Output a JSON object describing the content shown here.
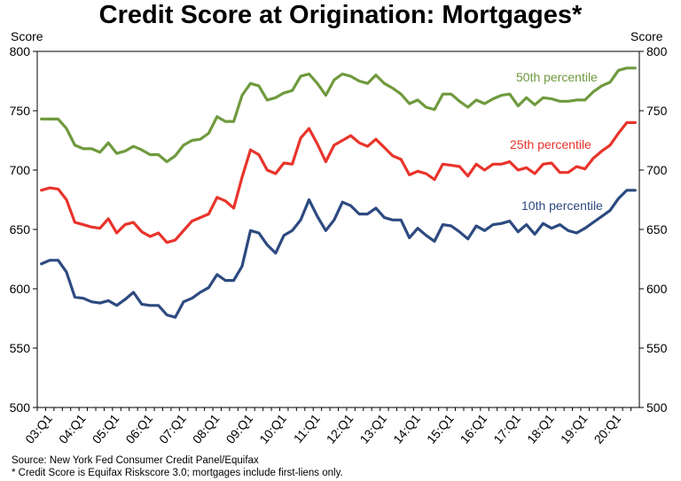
{
  "chart_data": {
    "type": "line",
    "title": "Credit Score at Origination: Mortgages*",
    "ylabel_left": "Score",
    "ylabel_right": "Score",
    "ylim": [
      500,
      800
    ],
    "yticks": [
      500,
      550,
      600,
      650,
      700,
      750,
      800
    ],
    "xticks": [
      "03:Q1",
      "04:Q1",
      "05:Q1",
      "06:Q1",
      "07:Q1",
      "08:Q1",
      "09:Q1",
      "10:Q1",
      "11:Q1",
      "12:Q1",
      "13:Q1",
      "14:Q1",
      "15:Q1",
      "16:Q1",
      "17:Q1",
      "18:Q1",
      "19:Q1",
      "20:Q1"
    ],
    "x": [
      "03:Q1",
      "03:Q2",
      "03:Q3",
      "03:Q4",
      "04:Q1",
      "04:Q2",
      "04:Q3",
      "04:Q4",
      "05:Q1",
      "05:Q2",
      "05:Q3",
      "05:Q4",
      "06:Q1",
      "06:Q2",
      "06:Q3",
      "06:Q4",
      "07:Q1",
      "07:Q2",
      "07:Q3",
      "07:Q4",
      "08:Q1",
      "08:Q2",
      "08:Q3",
      "08:Q4",
      "09:Q1",
      "09:Q2",
      "09:Q3",
      "09:Q4",
      "10:Q1",
      "10:Q2",
      "10:Q3",
      "10:Q4",
      "11:Q1",
      "11:Q2",
      "11:Q3",
      "11:Q4",
      "12:Q1",
      "12:Q2",
      "12:Q3",
      "12:Q4",
      "13:Q1",
      "13:Q2",
      "13:Q3",
      "13:Q4",
      "14:Q1",
      "14:Q2",
      "14:Q3",
      "14:Q4",
      "15:Q1",
      "15:Q2",
      "15:Q3",
      "15:Q4",
      "16:Q1",
      "16:Q2",
      "16:Q3",
      "16:Q4",
      "17:Q1",
      "17:Q2",
      "17:Q3",
      "17:Q4",
      "18:Q1",
      "18:Q2",
      "18:Q3",
      "18:Q4",
      "19:Q1",
      "19:Q2",
      "19:Q3",
      "19:Q4",
      "20:Q1",
      "20:Q2",
      "20:Q3",
      "20:Q4"
    ],
    "series": [
      {
        "name": "50th percentile",
        "color": "#6f9a3e",
        "label_pos": "upper-right",
        "values": [
          743,
          743,
          743,
          735,
          721,
          718,
          718,
          715,
          723,
          714,
          716,
          720,
          717,
          713,
          713,
          707,
          712,
          721,
          725,
          726,
          731,
          745,
          741,
          741,
          763,
          773,
          771,
          759,
          761,
          765,
          767,
          779,
          781,
          773,
          763,
          776,
          781,
          779,
          775,
          773,
          780,
          773,
          769,
          764,
          756,
          759,
          753,
          751,
          764,
          764,
          758,
          753,
          759,
          756,
          760,
          763,
          764,
          754,
          761,
          755,
          761,
          760,
          758,
          758,
          759,
          759,
          766,
          771,
          774,
          784,
          786,
          786
        ]
      },
      {
        "name": "25th percentile",
        "color": "#e8342b",
        "label_pos": "upper-right",
        "values": [
          683,
          685,
          684,
          675,
          656,
          654,
          652,
          651,
          659,
          647,
          654,
          656,
          648,
          644,
          647,
          639,
          641,
          649,
          657,
          660,
          663,
          677,
          674,
          668,
          694,
          717,
          713,
          700,
          697,
          706,
          705,
          727,
          735,
          722,
          707,
          721,
          725,
          729,
          723,
          720,
          726,
          719,
          712,
          709,
          696,
          699,
          697,
          692,
          705,
          704,
          703,
          695,
          705,
          700,
          705,
          705,
          707,
          700,
          702,
          697,
          705,
          706,
          698,
          698,
          703,
          701,
          710,
          716,
          721,
          731,
          740,
          740
        ]
      },
      {
        "name": "10th percentile",
        "color": "#2d4a80",
        "label_pos": "upper-right",
        "values": [
          621,
          624,
          624,
          614,
          593,
          592,
          589,
          588,
          590,
          586,
          591,
          597,
          587,
          586,
          586,
          578,
          576,
          589,
          592,
          597,
          601,
          612,
          607,
          607,
          619,
          649,
          647,
          637,
          630,
          645,
          649,
          658,
          675,
          661,
          649,
          658,
          673,
          670,
          663,
          663,
          668,
          660,
          658,
          658,
          643,
          651,
          645,
          640,
          654,
          653,
          648,
          642,
          653,
          649,
          654,
          655,
          657,
          648,
          654,
          646,
          655,
          651,
          654,
          649,
          647,
          651,
          656,
          661,
          666,
          676,
          683,
          683
        ]
      }
    ],
    "grid": false,
    "legend": "inline labels"
  },
  "footnotes": {
    "source": "Source: New York Fed Consumer Credit Panel/Equifax",
    "note": "* Credit Score is Equifax Riskscore 3.0; mortgages include first-liens only."
  }
}
